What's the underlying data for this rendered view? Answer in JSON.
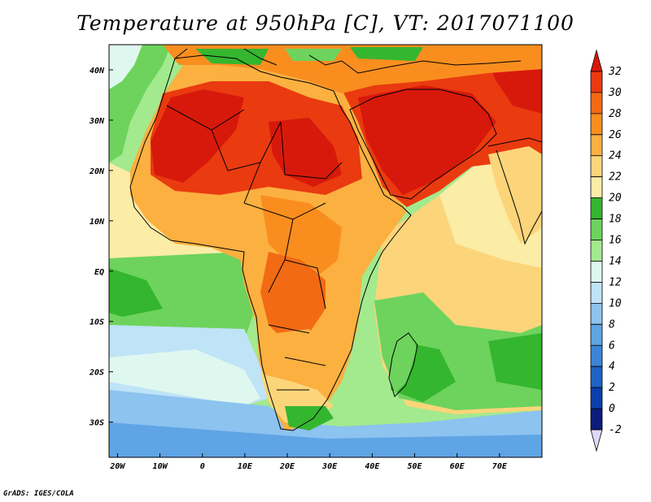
{
  "title": "Temperature at 950hPa [C], VT: 2017071100",
  "credit": "GrADS: IGES/COLA",
  "axes": {
    "longitude_labels": [
      "20W",
      "10W",
      "0",
      "10E",
      "20E",
      "30E",
      "40E",
      "50E",
      "60E",
      "70E"
    ],
    "longitude_values": [
      -20,
      -10,
      0,
      10,
      20,
      30,
      40,
      50,
      60,
      70
    ],
    "latitude_labels": [
      "40N",
      "30N",
      "20N",
      "10N",
      "EQ",
      "10S",
      "20S",
      "30S"
    ],
    "latitude_values": [
      40,
      30,
      20,
      10,
      0,
      -10,
      -20,
      -30
    ],
    "lon_range": [
      -22,
      80
    ],
    "lat_range": [
      -37,
      45
    ]
  },
  "colorbar": {
    "labels": [
      "32",
      "30",
      "28",
      "26",
      "24",
      "22",
      "20",
      "18",
      "16",
      "14",
      "12",
      "10",
      "8",
      "6",
      "4",
      "2",
      "0",
      "-2"
    ],
    "levels": [
      32,
      30,
      28,
      26,
      24,
      22,
      20,
      18,
      16,
      14,
      12,
      10,
      8,
      6,
      4,
      2,
      0,
      -2
    ],
    "colors_top_to_bottom": [
      "#d7190b",
      "#ea3a10",
      "#f26a14",
      "#f98e1f",
      "#fbb040",
      "#fcd57a",
      "#fbeca6",
      "#35b62f",
      "#6dd35d",
      "#a3e98e",
      "#dff8ef",
      "#bfe3f7",
      "#8cc3ef",
      "#5fa4e5",
      "#3a85d8",
      "#1f63c4",
      "#0b3fae",
      "#0c1c7c",
      "#e0d8f8"
    ]
  },
  "colors": {
    "hottest": "#d7190b",
    "very_hot": "#ea3a10",
    "hot": "#f98e1f",
    "warm": "#fcd57a",
    "mild": "#fbeca6",
    "green_dark": "#35b62f",
    "green_mid": "#6dd35d",
    "green_light": "#a3e98e",
    "cool_light": "#dff8ef",
    "blue_light": "#bfe3f7",
    "blue_mid": "#8cc3ef",
    "blue_dark": "#5fa4e5",
    "outline": "#000000"
  }
}
